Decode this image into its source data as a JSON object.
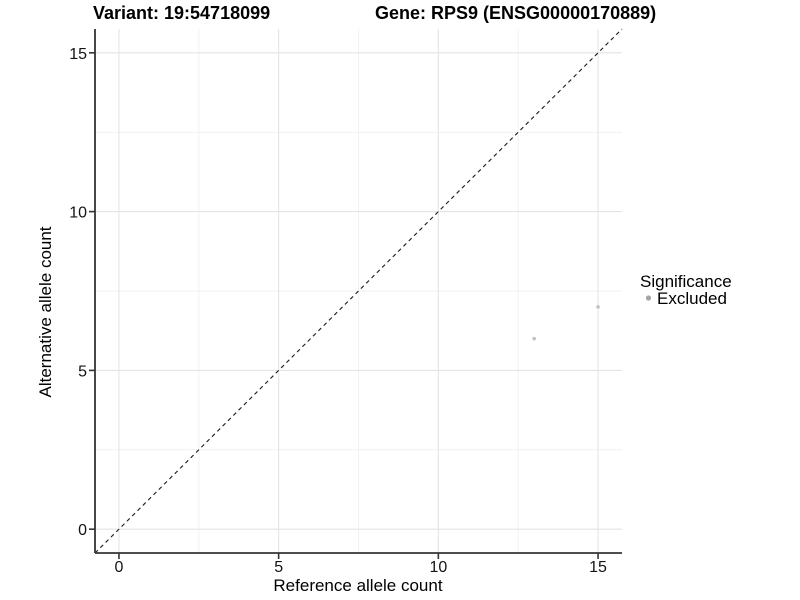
{
  "chart_data": {
    "type": "scatter",
    "title_left": "Variant: 19:54718099",
    "title_right": "Gene: RPS9 (ENSG00000170889)",
    "xlabel": "Reference allele count",
    "ylabel": "Alternative allele count",
    "xlim": [
      -0.75,
      15.75
    ],
    "ylim": [
      -0.75,
      15.75
    ],
    "xticks": {
      "values": [
        0,
        5,
        10,
        15
      ],
      "labels": [
        "0",
        "5",
        "10",
        "15"
      ]
    },
    "yticks": {
      "values": [
        0,
        5,
        10,
        15
      ],
      "labels": [
        "0",
        "5",
        "10",
        "15"
      ]
    },
    "xticks_minor": [
      2.5,
      7.5,
      12.5
    ],
    "yticks_minor": [
      2.5,
      7.5,
      12.5
    ],
    "grid": "major+minor",
    "identity_line": {
      "style": "dashed",
      "slope": 1,
      "intercept": 0
    },
    "series": [
      {
        "name": "Excluded",
        "marker": "circle",
        "color": "#c1c1c1",
        "points": [
          [
            13,
            6
          ],
          [
            15,
            7
          ]
        ]
      }
    ],
    "legend": {
      "title": "Significance",
      "position": "right",
      "entries": [
        {
          "label": "Excluded",
          "marker": "circle",
          "color": "#a4a4a4"
        }
      ]
    },
    "style": {
      "background": "#ffffff",
      "grid_major": "#e4e4e4",
      "grid_minor": "#f1f1f1",
      "axis": "#343434",
      "identity": "#222222"
    }
  }
}
